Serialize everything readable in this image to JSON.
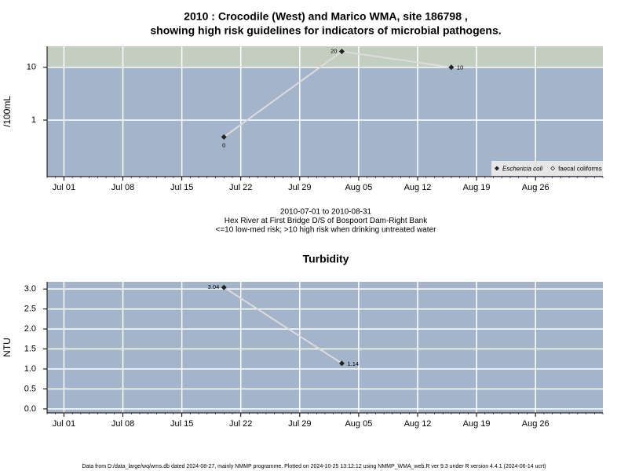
{
  "chart_data": [
    {
      "type": "line",
      "log_y": true,
      "title": [
        "2010 : Crocodile (West) and Marico WMA, site 186798 ,",
        "showing high risk guidelines for indicators of microbial pathogens."
      ],
      "y_label": "/100mL",
      "notes": [
        "2010-07-01 to 2010-08-31",
        "Hex River at First Bridge D/S of Bospoort Dam-Right Bank",
        "<=10 low-med risk; >10 high risk when drinking untreated water"
      ],
      "x": [
        "Jul 20",
        "Aug 03",
        "Aug 16"
      ],
      "series": [
        {
          "name": "Eschericia coli",
          "color": "#222222",
          "marker": "filled-diamond",
          "values": [
            0.48,
            20,
            10
          ],
          "value_labels": [
            "0",
            "20",
            "10"
          ]
        },
        {
          "name": "faecal coliforms",
          "color": "#222222",
          "marker": "open-diamond",
          "values": [
            null,
            null,
            null
          ]
        }
      ],
      "threshold": 10,
      "threshold_color": "#c3cec0",
      "plot_color": "#a3b4cb",
      "line_color": "#dcdcdc",
      "xlim": [
        "Jun 29",
        "Sep 03"
      ],
      "xticks": [
        "Jul 01",
        "Jul 08",
        "Jul 15",
        "Jul 22",
        "Jul 29",
        "Aug 05",
        "Aug 12",
        "Aug 19",
        "Aug 26"
      ],
      "ylim": [
        0.085,
        25
      ],
      "yticks": [
        1,
        10
      ],
      "grid": true,
      "legend": "bottom right"
    },
    {
      "type": "line",
      "log_y": false,
      "title": [
        "Turbidity"
      ],
      "y_label": "NTU",
      "x": [
        "Jul 20",
        "Aug 03"
      ],
      "series": [
        {
          "name": "Turbidity",
          "color": "#222222",
          "marker": "filled-diamond",
          "values": [
            3.04,
            1.14
          ]
        }
      ],
      "plot_color": "#a3b4cb",
      "line_color": "#dcdcdc",
      "xlim": [
        "Jun 29",
        "Sep 03"
      ],
      "xticks": [
        "Jul 01",
        "Jul 08",
        "Jul 15",
        "Jul 22",
        "Jul 29",
        "Aug 05",
        "Aug 12",
        "Aug 19",
        "Aug 26"
      ],
      "ylim": [
        -0.1,
        3.18
      ],
      "yticks": [
        {
          "value": 0,
          "label": "0.0"
        },
        {
          "value": 0.5,
          "label": "0.5"
        },
        {
          "value": 1,
          "label": "1.0"
        },
        {
          "value": 1.5,
          "label": "1.5"
        },
        {
          "value": 2,
          "label": "2.0"
        },
        {
          "value": 2.5,
          "label": "2.5"
        },
        {
          "value": 3,
          "label": "3.0"
        }
      ],
      "grid": true
    }
  ],
  "footer": "Data from D:/data_large/wq/wms.db dated 2024-08-27, mainly NMMP programme. Plotted on 2024-10-25 13:12:12 using NMMP_WMA_web.R ver 9.3 under R version 4.4.1 (2024-06-14 ucrt)"
}
